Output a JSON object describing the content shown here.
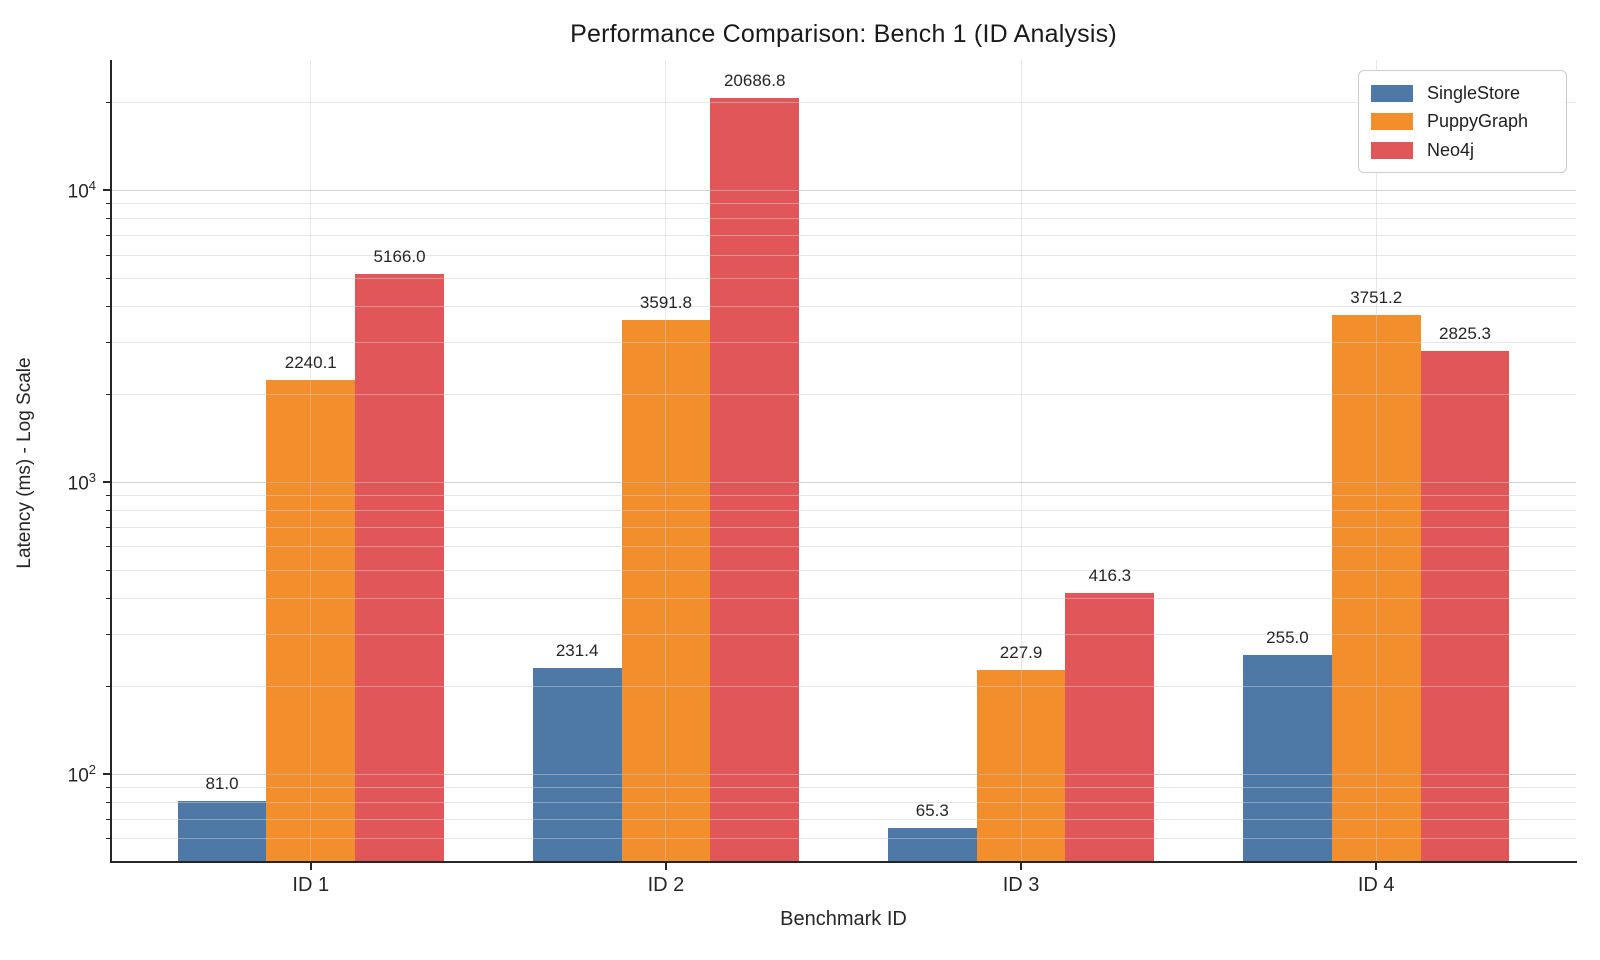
{
  "chart_data": {
    "type": "bar",
    "title": "Performance Comparison: Bench 1 (ID Analysis)",
    "xlabel": "Benchmark ID",
    "ylabel": "Latency (ms) - Log Scale",
    "categories": [
      "ID 1",
      "ID 2",
      "ID 3",
      "ID 4"
    ],
    "series": [
      {
        "name": "SingleStore",
        "color": "#4E79A7",
        "values": [
          81.0,
          231.4,
          65.3,
          255.0
        ]
      },
      {
        "name": "PuppyGraph",
        "color": "#F28E2B",
        "values": [
          2240.1,
          3591.8,
          227.9,
          3751.2
        ]
      },
      {
        "name": "Neo4j",
        "color": "#E15759",
        "values": [
          5166.0,
          20686.8,
          416.3,
          2825.3
        ]
      }
    ],
    "value_labels": [
      [
        "81.0",
        "231.4",
        "65.3",
        "255.0"
      ],
      [
        "2240.1",
        "3591.8",
        "227.9",
        "3751.2"
      ],
      [
        "5166.0",
        "20686.8",
        "416.3",
        "2825.3"
      ]
    ],
    "yscale": "log",
    "ylim": [
      50,
      27950
    ],
    "yticks": [
      {
        "value": 100,
        "base": "10",
        "exp": "2"
      },
      {
        "value": 1000,
        "base": "10",
        "exp": "3"
      },
      {
        "value": 10000,
        "base": "10",
        "exp": "4"
      }
    ],
    "grid": true,
    "legend_position": "upper right",
    "background_color": "#ffffff",
    "axis_color": "#262626"
  }
}
